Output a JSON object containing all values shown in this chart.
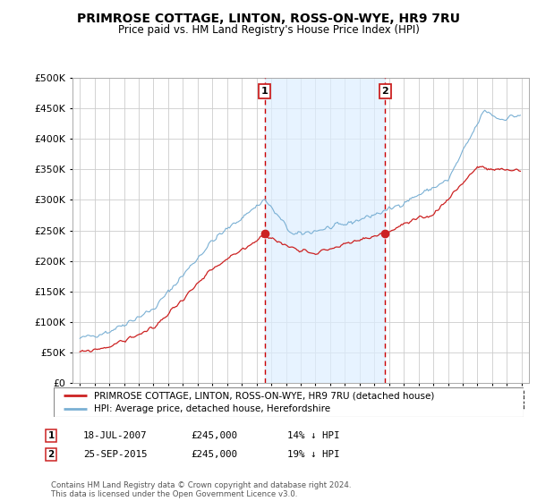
{
  "title": "PRIMROSE COTTAGE, LINTON, ROSS-ON-WYE, HR9 7RU",
  "subtitle": "Price paid vs. HM Land Registry's House Price Index (HPI)",
  "legend_line1": "PRIMROSE COTTAGE, LINTON, ROSS-ON-WYE, HR9 7RU (detached house)",
  "legend_line2": "HPI: Average price, detached house, Herefordshire",
  "transaction1_date": "18-JUL-2007",
  "transaction1_price": 245000,
  "transaction1_label": "14% ↓ HPI",
  "transaction2_date": "25-SEP-2015",
  "transaction2_price": 245000,
  "transaction2_label": "19% ↓ HPI",
  "footer": "Contains HM Land Registry data © Crown copyright and database right 2024.\nThis data is licensed under the Open Government Licence v3.0.",
  "hpi_color": "#7ab0d4",
  "price_color": "#cc2222",
  "marker_color": "#cc2222",
  "vline_color": "#cc0000",
  "shade_color": "#ddeeff",
  "background_color": "#ffffff",
  "grid_color": "#cccccc",
  "ylim": [
    0,
    500000
  ],
  "yticks": [
    0,
    50000,
    100000,
    150000,
    200000,
    250000,
    300000,
    350000,
    400000,
    450000,
    500000
  ]
}
